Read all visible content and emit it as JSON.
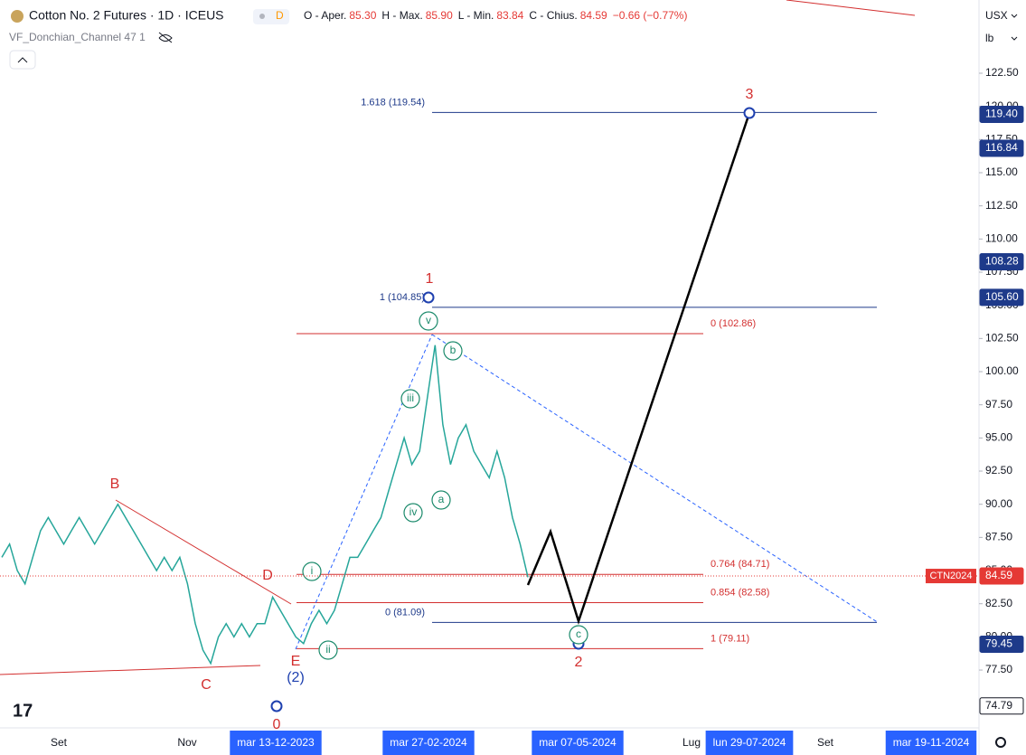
{
  "header": {
    "title": "Cotton No. 2 Futures · 1D · ICEUS",
    "badge": "D",
    "ohlc": [
      {
        "label": "O - Aper.",
        "value": "85.30"
      },
      {
        "label": "H - Max.",
        "value": "85.90"
      },
      {
        "label": "L - Min.",
        "value": "83.84"
      },
      {
        "label": "C - Chius.",
        "value": "84.59"
      }
    ],
    "change": "−0.66 (−0.77%)",
    "indicator": "VF_Donchian_Channel 47 1"
  },
  "toolbar": {
    "currency": "USX",
    "unit": "lb"
  },
  "chart_data": {
    "type": "line",
    "color": "#26a69a",
    "values": [
      86,
      87,
      85,
      84,
      86,
      88,
      89,
      88,
      87,
      88,
      89,
      88,
      87,
      88,
      89,
      90,
      89,
      88,
      87,
      86,
      85,
      86,
      85,
      86,
      84,
      81,
      79,
      78,
      80,
      81,
      80,
      81,
      80,
      81,
      81,
      83,
      82,
      81,
      80,
      79.5,
      81,
      82,
      81,
      82,
      84,
      86,
      86,
      87,
      88,
      89,
      91,
      93,
      95,
      93,
      94,
      98,
      102,
      96,
      93,
      95,
      96,
      94,
      93,
      92,
      94,
      92,
      89,
      87,
      84.5
    ],
    "ylim": [
      73.14,
      128.02
    ],
    "yticks": [
      {
        "value": 77.5,
        "label": "77.50"
      },
      {
        "value": 80,
        "label": "80.00"
      },
      {
        "value": 82.5,
        "label": "82.50"
      },
      {
        "value": 85,
        "label": "85.00"
      },
      {
        "value": 87.5,
        "label": "87.50"
      },
      {
        "value": 90,
        "label": "90.00"
      },
      {
        "value": 92.5,
        "label": "92.50"
      },
      {
        "value": 95,
        "label": "95.00"
      },
      {
        "value": 97.5,
        "label": "97.50"
      },
      {
        "value": 100,
        "label": "100.00"
      },
      {
        "value": 102.5,
        "label": "102.50"
      },
      {
        "value": 105,
        "label": "105.00"
      },
      {
        "value": 107.5,
        "label": "107.50"
      },
      {
        "value": 110,
        "label": "110.00"
      },
      {
        "value": 112.5,
        "label": "112.50"
      },
      {
        "value": 115,
        "label": "115.00"
      },
      {
        "value": 117.5,
        "label": "117.50"
      },
      {
        "value": 120,
        "label": "120.00"
      },
      {
        "value": 122.5,
        "label": "122.50"
      }
    ],
    "price_tags": [
      {
        "value": 119.4,
        "label": "119.40",
        "color": "#1e3a8a"
      },
      {
        "value": 116.84,
        "label": "116.84",
        "color": "#1e3a8a"
      },
      {
        "value": 108.28,
        "label": "108.28",
        "color": "#1e3a8a"
      },
      {
        "value": 105.6,
        "label": "105.60",
        "color": "#1e3a8a"
      },
      {
        "name": "CTN2024",
        "value": 84.59,
        "label": "84.59",
        "color": "#e53935"
      },
      {
        "value": 79.45,
        "label": "79.45",
        "color": "#1e3a8a"
      },
      {
        "value": 74.79,
        "label": "74.79",
        "color": "#ffffff"
      }
    ],
    "levels": [
      {
        "value": 119.54,
        "label": "1.618 (119.54)",
        "color": "#1e3a8a"
      },
      {
        "value": 104.85,
        "label": "1 (104.85)",
        "color": "#1e3a8a"
      },
      {
        "value": 102.86,
        "label": "0 (102.86)",
        "color": "#d32f2f"
      },
      {
        "value": 84.71,
        "label": "0.764 (84.71)",
        "color": "#d32f2f"
      },
      {
        "value": 82.58,
        "label": "0.854 (82.58)",
        "color": "#d32f2f"
      },
      {
        "value": 81.09,
        "label": "0 (81.09)",
        "color": "#1e3a8a"
      },
      {
        "value": 79.11,
        "label": "1 (79.11)",
        "color": "#d32f2f"
      }
    ],
    "waves": [
      "B",
      "C",
      "D",
      "E",
      "0",
      "(2)",
      "1",
      "2",
      "3",
      "i",
      "ii",
      "iii",
      "iv",
      "v",
      "a",
      "b",
      "c"
    ],
    "x_labels": [
      "Set",
      "Nov",
      "mar 13-12-2023",
      "mar 27-02-2024",
      "mar 07-05-2024",
      "Lug",
      "lun 29-07-2024",
      "Set",
      "mar 19-11-2024"
    ]
  }
}
